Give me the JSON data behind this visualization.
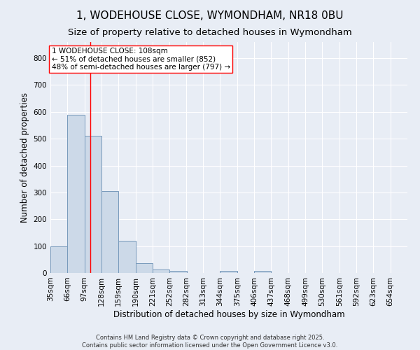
{
  "title1": "1, WODEHOUSE CLOSE, WYMONDHAM, NR18 0BU",
  "title2": "Size of property relative to detached houses in Wymondham",
  "xlabel": "Distribution of detached houses by size in Wymondham",
  "ylabel": "Number of detached properties",
  "bins": [
    35,
    66,
    97,
    128,
    159,
    190,
    221,
    252,
    282,
    313,
    344,
    375,
    406,
    437,
    468,
    499,
    530,
    561,
    592,
    623,
    654
  ],
  "values": [
    100,
    590,
    510,
    305,
    120,
    37,
    13,
    8,
    0,
    0,
    8,
    0,
    8,
    0,
    0,
    0,
    0,
    0,
    0,
    0
  ],
  "bar_color": "#ccd9e8",
  "bar_edge_color": "#7799bb",
  "bg_color": "#e8edf5",
  "grid_color": "#ffffff",
  "red_line_x": 108,
  "annotation_line1": "1 WODEHOUSE CLOSE: 108sqm",
  "annotation_line2": "← 51% of detached houses are smaller (852)",
  "annotation_line3": "48% of semi-detached houses are larger (797) →",
  "ylim": [
    0,
    860
  ],
  "yticks": [
    0,
    100,
    200,
    300,
    400,
    500,
    600,
    700,
    800
  ],
  "title1_fontsize": 11,
  "title2_fontsize": 9.5,
  "xlabel_fontsize": 8.5,
  "ylabel_fontsize": 8.5,
  "tick_fontsize": 7.5,
  "annotation_fontsize": 7.5,
  "footer_fontsize": 6,
  "footer_text": "Contains HM Land Registry data © Crown copyright and database right 2025.\nContains public sector information licensed under the Open Government Licence v3.0."
}
